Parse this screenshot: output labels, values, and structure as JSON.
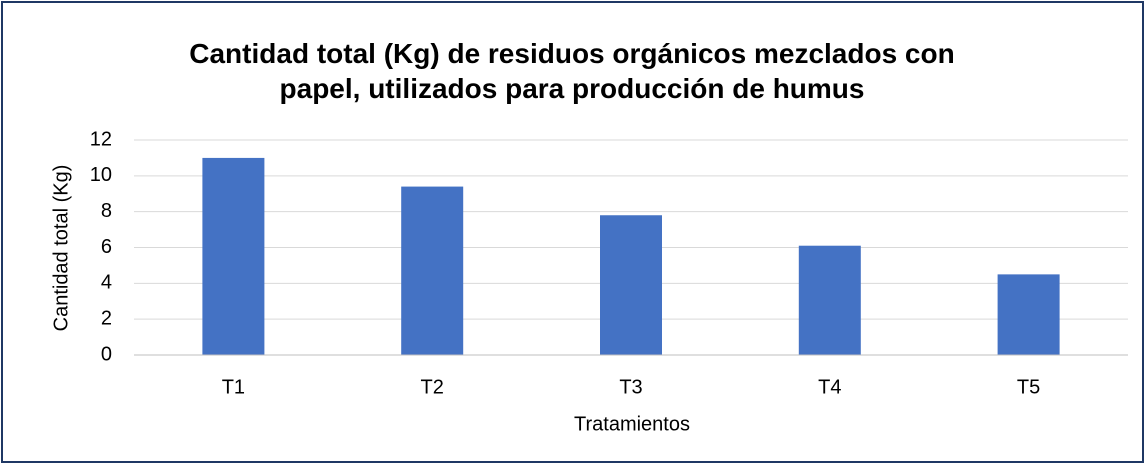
{
  "chart_data": {
    "type": "bar",
    "title": "Cantidad total (Kg) de residuos orgánicos mezclados con papel, utilizados para producción de humus",
    "x_label": "Tratamientos",
    "y_label": "Cantidad total (Kg)",
    "categories": [
      "T1",
      "T2",
      "T3",
      "T4",
      "T5"
    ],
    "values": [
      11,
      9.4,
      7.8,
      6.1,
      4.5
    ],
    "color": "#4472c4",
    "ylim": [
      0,
      12
    ],
    "yticks": [
      0,
      2,
      4,
      6,
      8,
      10,
      12
    ],
    "grid": true
  }
}
